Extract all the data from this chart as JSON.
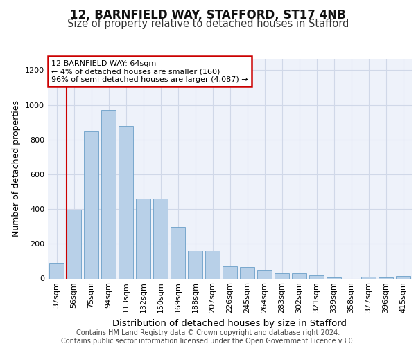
{
  "title1": "12, BARNFIELD WAY, STAFFORD, ST17 4NB",
  "title2": "Size of property relative to detached houses in Stafford",
  "xlabel": "Distribution of detached houses by size in Stafford",
  "ylabel": "Number of detached properties",
  "footnote1": "Contains HM Land Registry data © Crown copyright and database right 2024.",
  "footnote2": "Contains public sector information licensed under the Open Government Licence v3.0.",
  "categories": [
    "37sqm",
    "56sqm",
    "75sqm",
    "94sqm",
    "113sqm",
    "132sqm",
    "150sqm",
    "169sqm",
    "188sqm",
    "207sqm",
    "226sqm",
    "245sqm",
    "264sqm",
    "283sqm",
    "302sqm",
    "321sqm",
    "339sqm",
    "358sqm",
    "377sqm",
    "396sqm",
    "415sqm"
  ],
  "values": [
    90,
    395,
    845,
    970,
    880,
    460,
    460,
    295,
    160,
    160,
    70,
    65,
    48,
    30,
    28,
    18,
    5,
    0,
    10,
    5,
    15
  ],
  "bar_color": "#b8d0e8",
  "bar_edge_color": "#6a9fc8",
  "annotation_box_text": "12 BARNFIELD WAY: 64sqm\n← 4% of detached houses are smaller (160)\n96% of semi-detached houses are larger (4,087) →",
  "annotation_box_color": "#ffffff",
  "annotation_box_edge_color": "#cc0000",
  "vline_color": "#cc0000",
  "vline_x_index": 1.0,
  "ylim": [
    0,
    1265
  ],
  "yticks": [
    0,
    200,
    400,
    600,
    800,
    1000,
    1200
  ],
  "grid_color": "#d0d8e8",
  "background_color": "#eef2fa",
  "title1_fontsize": 12,
  "title2_fontsize": 10.5,
  "xlabel_fontsize": 9.5,
  "ylabel_fontsize": 9,
  "tick_fontsize": 8,
  "footnote_fontsize": 7,
  "annotation_fontsize": 8
}
